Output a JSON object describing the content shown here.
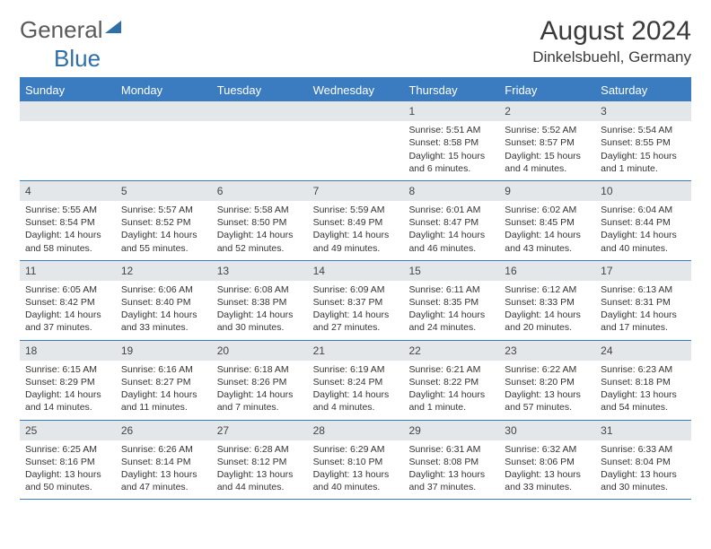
{
  "logo": {
    "part1": "General",
    "part2": "Blue"
  },
  "title": "August 2024",
  "location": "Dinkelsbuehl, Germany",
  "colors": {
    "accent": "#3b7bbf",
    "daynum_bg": "#e4e7ea",
    "text": "#333333",
    "logo_gray": "#5a5a5a",
    "logo_blue": "#2f6fa8"
  },
  "typography": {
    "title_fontsize": 30,
    "location_fontsize": 17,
    "weekday_fontsize": 13,
    "body_fontsize": 10.5
  },
  "weekdays": [
    "Sunday",
    "Monday",
    "Tuesday",
    "Wednesday",
    "Thursday",
    "Friday",
    "Saturday"
  ],
  "weeks": [
    [
      null,
      null,
      null,
      null,
      {
        "n": "1",
        "sunrise": "Sunrise: 5:51 AM",
        "sunset": "Sunset: 8:58 PM",
        "daylight": "Daylight: 15 hours and 6 minutes."
      },
      {
        "n": "2",
        "sunrise": "Sunrise: 5:52 AM",
        "sunset": "Sunset: 8:57 PM",
        "daylight": "Daylight: 15 hours and 4 minutes."
      },
      {
        "n": "3",
        "sunrise": "Sunrise: 5:54 AM",
        "sunset": "Sunset: 8:55 PM",
        "daylight": "Daylight: 15 hours and 1 minute."
      }
    ],
    [
      {
        "n": "4",
        "sunrise": "Sunrise: 5:55 AM",
        "sunset": "Sunset: 8:54 PM",
        "daylight": "Daylight: 14 hours and 58 minutes."
      },
      {
        "n": "5",
        "sunrise": "Sunrise: 5:57 AM",
        "sunset": "Sunset: 8:52 PM",
        "daylight": "Daylight: 14 hours and 55 minutes."
      },
      {
        "n": "6",
        "sunrise": "Sunrise: 5:58 AM",
        "sunset": "Sunset: 8:50 PM",
        "daylight": "Daylight: 14 hours and 52 minutes."
      },
      {
        "n": "7",
        "sunrise": "Sunrise: 5:59 AM",
        "sunset": "Sunset: 8:49 PM",
        "daylight": "Daylight: 14 hours and 49 minutes."
      },
      {
        "n": "8",
        "sunrise": "Sunrise: 6:01 AM",
        "sunset": "Sunset: 8:47 PM",
        "daylight": "Daylight: 14 hours and 46 minutes."
      },
      {
        "n": "9",
        "sunrise": "Sunrise: 6:02 AM",
        "sunset": "Sunset: 8:45 PM",
        "daylight": "Daylight: 14 hours and 43 minutes."
      },
      {
        "n": "10",
        "sunrise": "Sunrise: 6:04 AM",
        "sunset": "Sunset: 8:44 PM",
        "daylight": "Daylight: 14 hours and 40 minutes."
      }
    ],
    [
      {
        "n": "11",
        "sunrise": "Sunrise: 6:05 AM",
        "sunset": "Sunset: 8:42 PM",
        "daylight": "Daylight: 14 hours and 37 minutes."
      },
      {
        "n": "12",
        "sunrise": "Sunrise: 6:06 AM",
        "sunset": "Sunset: 8:40 PM",
        "daylight": "Daylight: 14 hours and 33 minutes."
      },
      {
        "n": "13",
        "sunrise": "Sunrise: 6:08 AM",
        "sunset": "Sunset: 8:38 PM",
        "daylight": "Daylight: 14 hours and 30 minutes."
      },
      {
        "n": "14",
        "sunrise": "Sunrise: 6:09 AM",
        "sunset": "Sunset: 8:37 PM",
        "daylight": "Daylight: 14 hours and 27 minutes."
      },
      {
        "n": "15",
        "sunrise": "Sunrise: 6:11 AM",
        "sunset": "Sunset: 8:35 PM",
        "daylight": "Daylight: 14 hours and 24 minutes."
      },
      {
        "n": "16",
        "sunrise": "Sunrise: 6:12 AM",
        "sunset": "Sunset: 8:33 PM",
        "daylight": "Daylight: 14 hours and 20 minutes."
      },
      {
        "n": "17",
        "sunrise": "Sunrise: 6:13 AM",
        "sunset": "Sunset: 8:31 PM",
        "daylight": "Daylight: 14 hours and 17 minutes."
      }
    ],
    [
      {
        "n": "18",
        "sunrise": "Sunrise: 6:15 AM",
        "sunset": "Sunset: 8:29 PM",
        "daylight": "Daylight: 14 hours and 14 minutes."
      },
      {
        "n": "19",
        "sunrise": "Sunrise: 6:16 AM",
        "sunset": "Sunset: 8:27 PM",
        "daylight": "Daylight: 14 hours and 11 minutes."
      },
      {
        "n": "20",
        "sunrise": "Sunrise: 6:18 AM",
        "sunset": "Sunset: 8:26 PM",
        "daylight": "Daylight: 14 hours and 7 minutes."
      },
      {
        "n": "21",
        "sunrise": "Sunrise: 6:19 AM",
        "sunset": "Sunset: 8:24 PM",
        "daylight": "Daylight: 14 hours and 4 minutes."
      },
      {
        "n": "22",
        "sunrise": "Sunrise: 6:21 AM",
        "sunset": "Sunset: 8:22 PM",
        "daylight": "Daylight: 14 hours and 1 minute."
      },
      {
        "n": "23",
        "sunrise": "Sunrise: 6:22 AM",
        "sunset": "Sunset: 8:20 PM",
        "daylight": "Daylight: 13 hours and 57 minutes."
      },
      {
        "n": "24",
        "sunrise": "Sunrise: 6:23 AM",
        "sunset": "Sunset: 8:18 PM",
        "daylight": "Daylight: 13 hours and 54 minutes."
      }
    ],
    [
      {
        "n": "25",
        "sunrise": "Sunrise: 6:25 AM",
        "sunset": "Sunset: 8:16 PM",
        "daylight": "Daylight: 13 hours and 50 minutes."
      },
      {
        "n": "26",
        "sunrise": "Sunrise: 6:26 AM",
        "sunset": "Sunset: 8:14 PM",
        "daylight": "Daylight: 13 hours and 47 minutes."
      },
      {
        "n": "27",
        "sunrise": "Sunrise: 6:28 AM",
        "sunset": "Sunset: 8:12 PM",
        "daylight": "Daylight: 13 hours and 44 minutes."
      },
      {
        "n": "28",
        "sunrise": "Sunrise: 6:29 AM",
        "sunset": "Sunset: 8:10 PM",
        "daylight": "Daylight: 13 hours and 40 minutes."
      },
      {
        "n": "29",
        "sunrise": "Sunrise: 6:31 AM",
        "sunset": "Sunset: 8:08 PM",
        "daylight": "Daylight: 13 hours and 37 minutes."
      },
      {
        "n": "30",
        "sunrise": "Sunrise: 6:32 AM",
        "sunset": "Sunset: 8:06 PM",
        "daylight": "Daylight: 13 hours and 33 minutes."
      },
      {
        "n": "31",
        "sunrise": "Sunrise: 6:33 AM",
        "sunset": "Sunset: 8:04 PM",
        "daylight": "Daylight: 13 hours and 30 minutes."
      }
    ]
  ]
}
